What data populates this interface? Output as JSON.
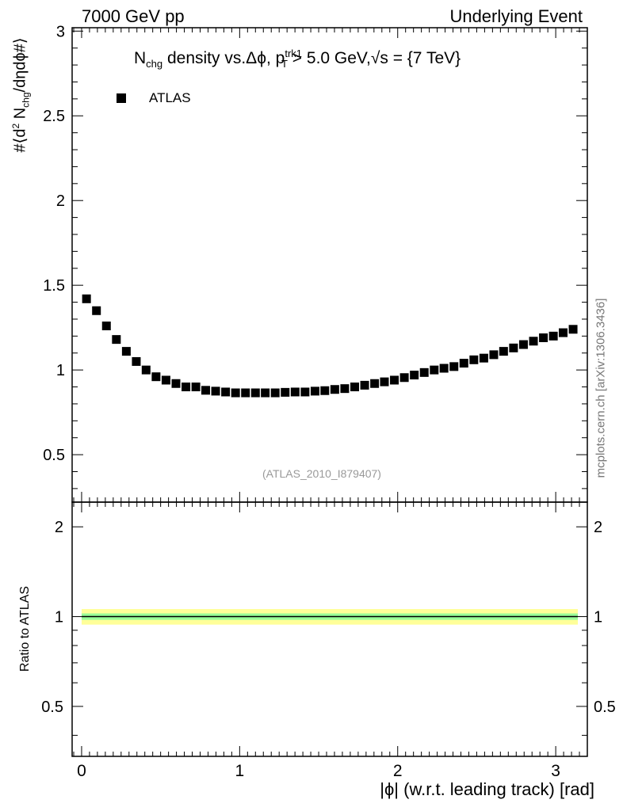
{
  "header": {
    "left": "7000 GeV pp",
    "right": "Underlying Event"
  },
  "title": {
    "n": "N",
    "chg": "chg",
    "mid": " density vs.Δϕ, p",
    "sup": "trk1",
    "sub": "T",
    "tail": " > 5.0 GeV,√s = {7 TeV}"
  },
  "analysis_ref": "(ATLAS_2010_I879407)",
  "watermark": "mcplots.cern.ch [arXiv:1306.3436]",
  "y_label_top": {
    "a": "#⟨d",
    "sup": "2",
    "b": " N",
    "sub": "chg",
    "c": "/dηdϕ#⟩"
  },
  "y_label_bottom": "Ratio to ATLAS",
  "x_label": "|ϕ| (w.r.t. leading track) [rad]",
  "colors": {
    "marker": "#000000",
    "band_outer": "#ffff99",
    "band_inner": "#99ff99",
    "ratio_line": "#000000",
    "analysis_ref": "#999999",
    "watermark": "#777777"
  },
  "chart_data": [
    {
      "type": "scatter",
      "panel": "main",
      "legend": [
        "ATLAS"
      ],
      "legend_position": "top-left",
      "xlim": [
        -0.06,
        3.2
      ],
      "ylim": [
        0.22,
        3.02
      ],
      "x_ticks": [
        "0",
        "1",
        "2",
        "3"
      ],
      "y_ticks": [
        "0.5",
        "1",
        "1.5",
        "2",
        "2.5",
        "3"
      ],
      "series": [
        {
          "name": "ATLAS",
          "x": [
            0.031,
            0.094,
            0.157,
            0.22,
            0.283,
            0.346,
            0.408,
            0.471,
            0.534,
            0.597,
            0.66,
            0.723,
            0.785,
            0.848,
            0.911,
            0.974,
            1.037,
            1.1,
            1.162,
            1.225,
            1.288,
            1.351,
            1.414,
            1.477,
            1.539,
            1.602,
            1.665,
            1.728,
            1.791,
            1.854,
            1.916,
            1.979,
            2.042,
            2.105,
            2.168,
            2.231,
            2.293,
            2.356,
            2.419,
            2.482,
            2.545,
            2.608,
            2.67,
            2.733,
            2.796,
            2.859,
            2.922,
            2.985,
            3.047,
            3.11
          ],
          "y": [
            1.42,
            1.35,
            1.26,
            1.18,
            1.11,
            1.05,
            1.0,
            0.96,
            0.94,
            0.92,
            0.9,
            0.9,
            0.88,
            0.875,
            0.87,
            0.865,
            0.865,
            0.865,
            0.865,
            0.865,
            0.868,
            0.87,
            0.87,
            0.875,
            0.878,
            0.885,
            0.89,
            0.9,
            0.91,
            0.92,
            0.93,
            0.94,
            0.955,
            0.97,
            0.985,
            1.0,
            1.01,
            1.02,
            1.04,
            1.06,
            1.07,
            1.09,
            1.11,
            1.13,
            1.15,
            1.17,
            1.19,
            1.2,
            1.22,
            1.24
          ]
        }
      ]
    },
    {
      "type": "line",
      "panel": "ratio",
      "xlim": [
        -0.06,
        3.2
      ],
      "ylim": [
        0.34,
        2.42
      ],
      "y_scale": "log",
      "x_ticks": [
        "0",
        "1",
        "2",
        "3"
      ],
      "y_ticks": [
        "0.5",
        "1",
        "2"
      ],
      "x": [
        0.0,
        3.14
      ],
      "series": [
        {
          "name": "ATLAS",
          "values": [
            1.0,
            1.0
          ],
          "band_inner": [
            0.975,
            1.025
          ],
          "band_outer": [
            0.94,
            1.06
          ]
        }
      ]
    }
  ]
}
